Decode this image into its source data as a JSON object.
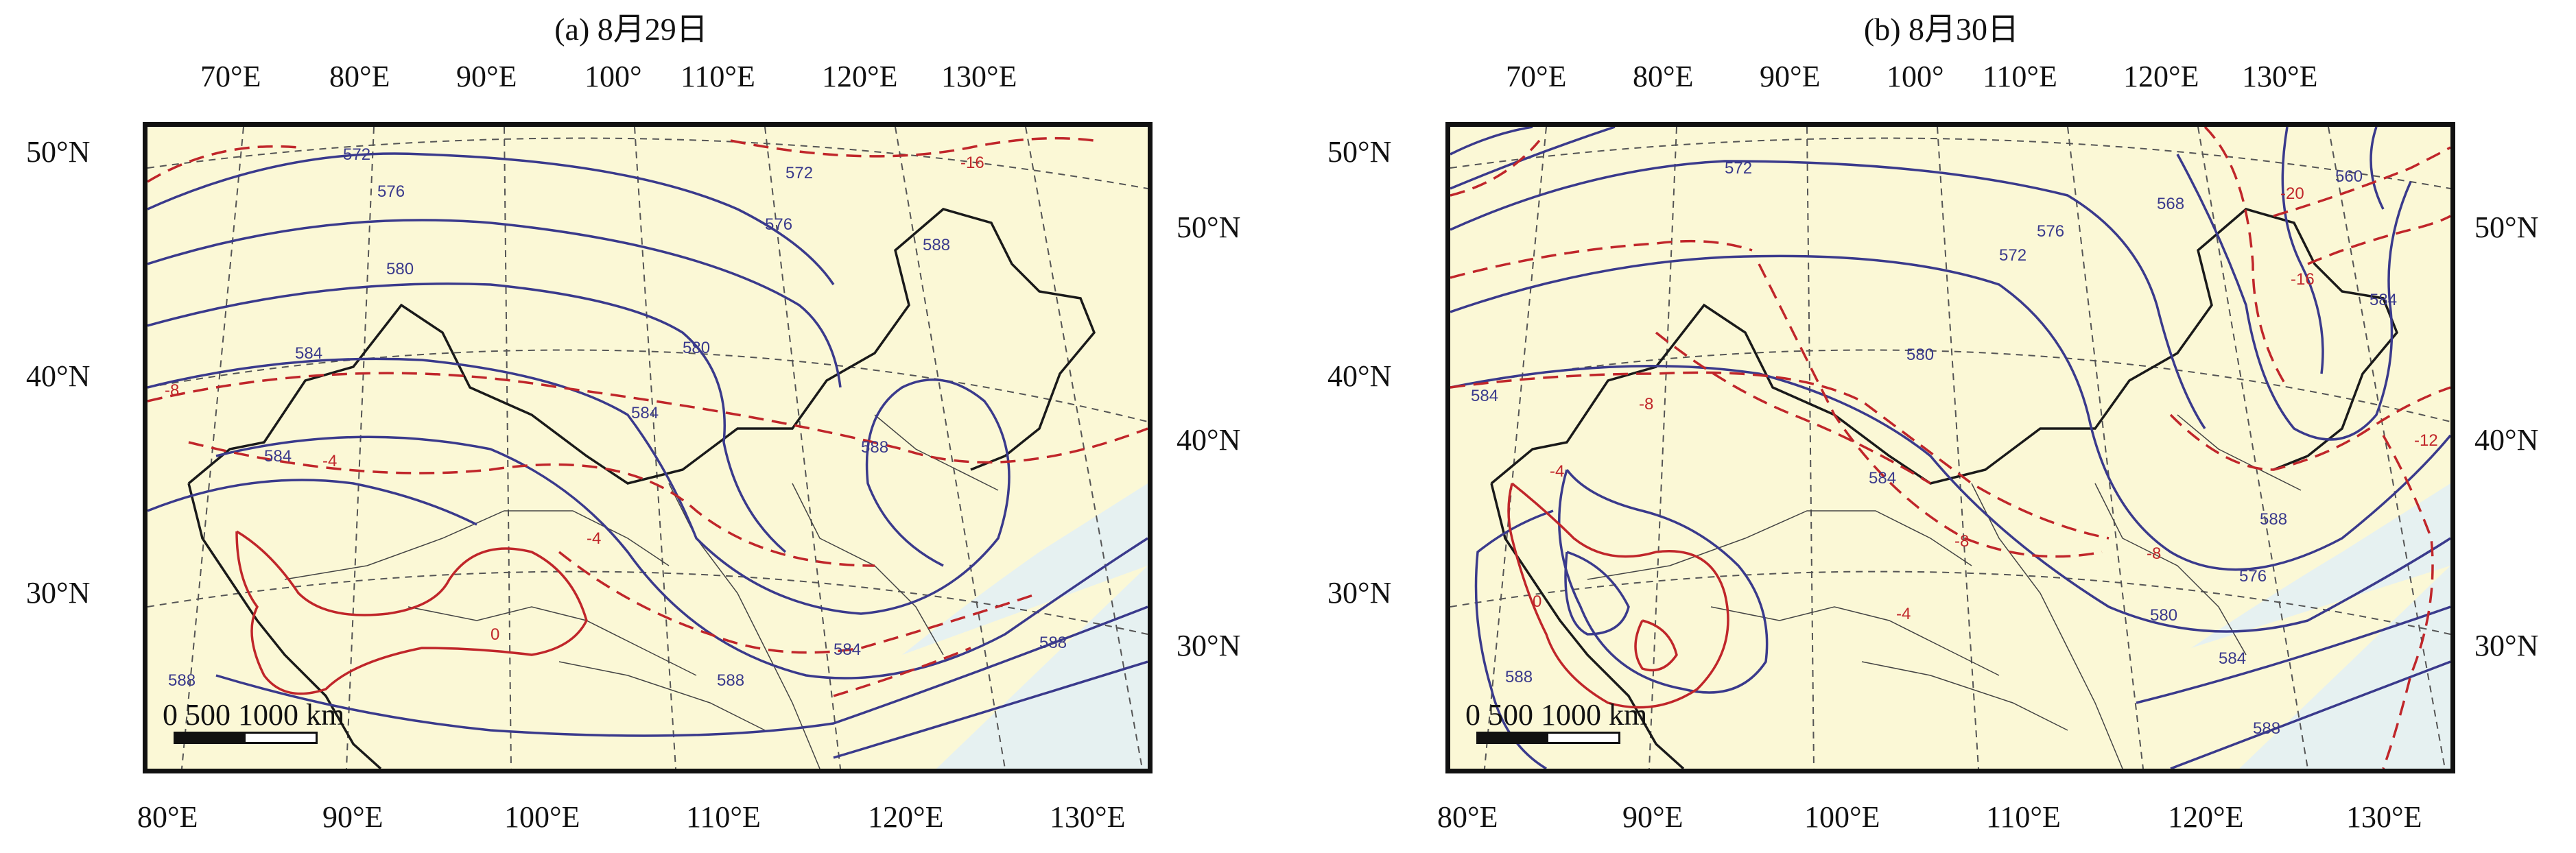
{
  "panels": [
    {
      "title": "(a) 8月29日",
      "top_lon_ticks": [
        "70°E",
        "80°E",
        "90°E",
        "100°",
        "110°E",
        "120°E",
        "130°E"
      ],
      "bottom_lon_ticks": [
        "80°E",
        "90°E",
        "100°E",
        "110°E",
        "120°E",
        "130°E"
      ],
      "left_lat_ticks": [
        "50°N",
        "40°N",
        "30°N"
      ],
      "right_lat_ticks": [
        "50°N",
        "40°N",
        "30°N"
      ],
      "height_contour_labels": [
        "572",
        "576",
        "580",
        "584",
        "584",
        "588",
        "580",
        "584",
        "588",
        "588",
        "588",
        "572",
        "576",
        "588",
        "584"
      ],
      "temperature_contour_labels": [
        "-16",
        "-8",
        "-4",
        "-4",
        "0"
      ],
      "scale": {
        "labels": "0   500 1000 km"
      }
    },
    {
      "title": "(b) 8月30日",
      "top_lon_ticks": [
        "70°E",
        "80°E",
        "90°E",
        "100°",
        "110°E",
        "120°E",
        "130°E"
      ],
      "bottom_lon_ticks": [
        "80°E",
        "90°E",
        "100°E",
        "110°E",
        "120°E",
        "130°E"
      ],
      "left_lat_ticks": [
        "50°N",
        "40°N",
        "30°N"
      ],
      "right_lat_ticks": [
        "50°N",
        "40°N",
        "30°N"
      ],
      "height_contour_labels": [
        "572",
        "580",
        "576",
        "572",
        "568",
        "560",
        "584",
        "584",
        "588",
        "576",
        "580",
        "584",
        "588",
        "588",
        "584"
      ],
      "temperature_contour_labels": [
        "-20",
        "-16",
        "-12",
        "-8",
        "-4",
        "-8",
        "-4",
        "-8",
        "0"
      ],
      "scale": {
        "labels": "0   500 1000 km"
      }
    }
  ],
  "colors": {
    "land": "#fbf8d6",
    "sea": "#e6f1f1",
    "height_contour": "#3a3a8c",
    "temperature_contour": "#c0262a",
    "border": "#1a1a1a",
    "grid": "#555555"
  }
}
